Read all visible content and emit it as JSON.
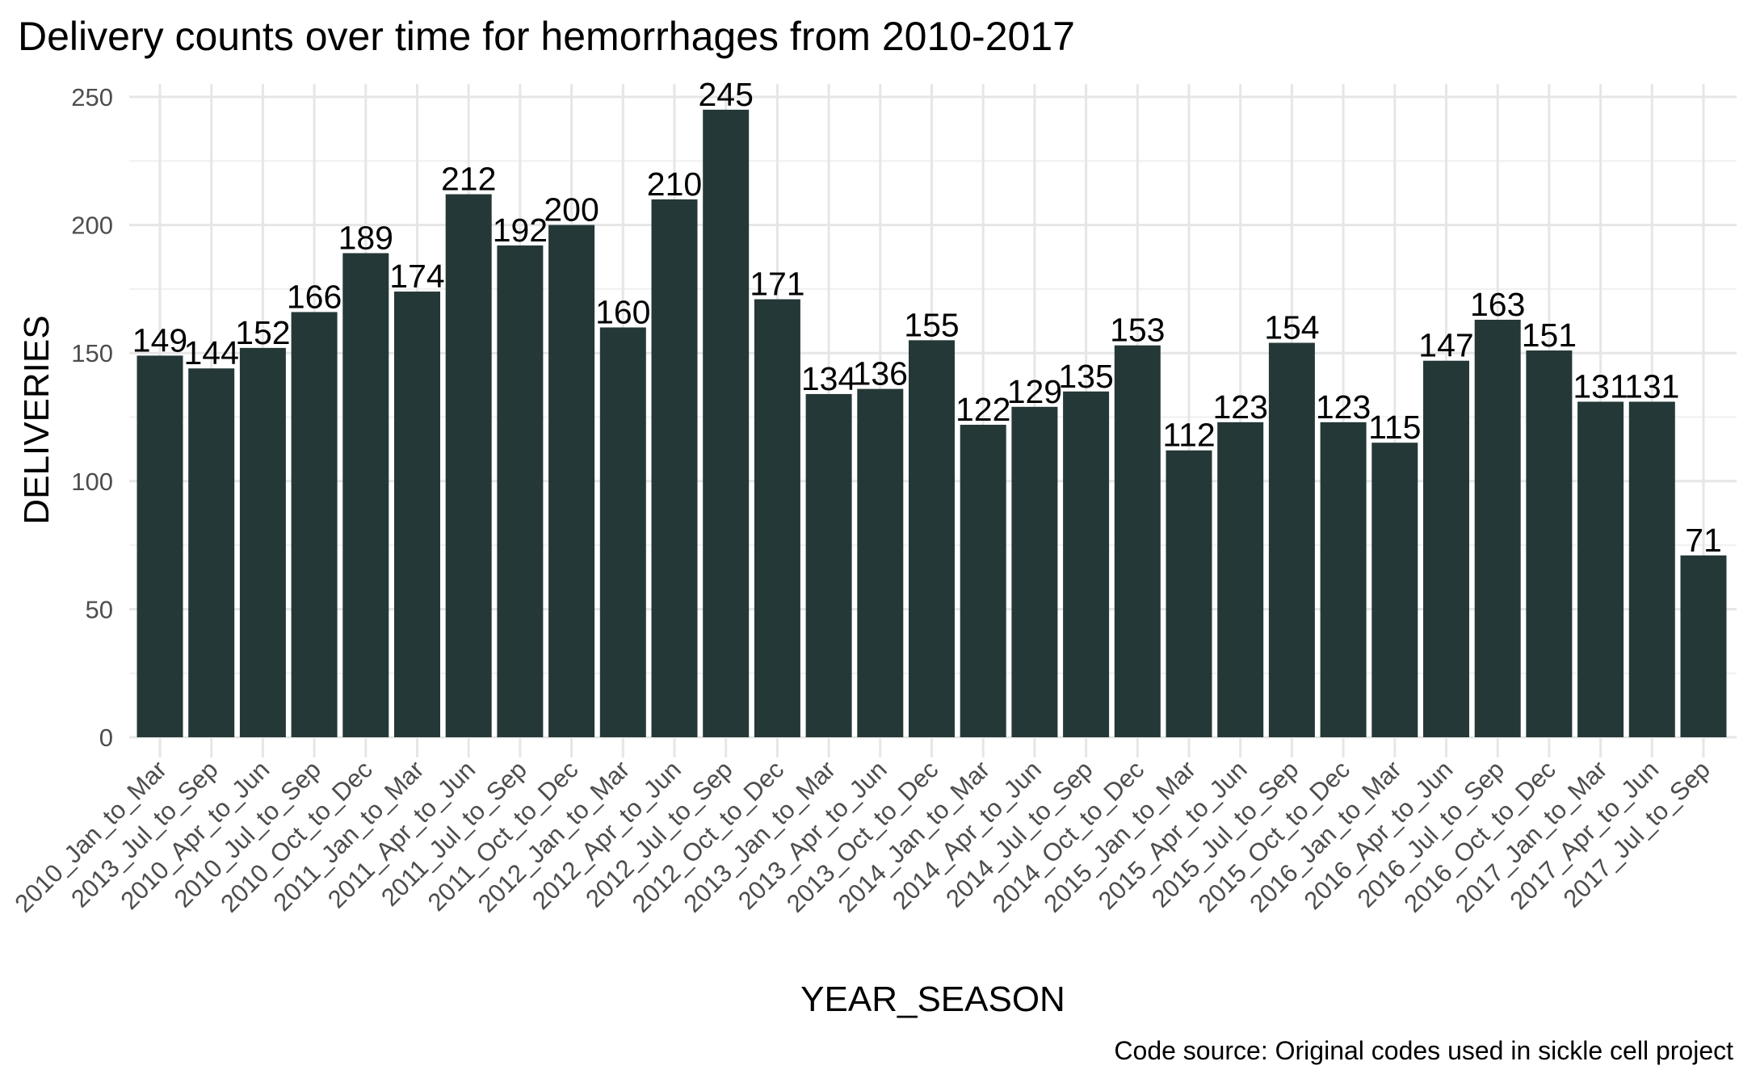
{
  "chart_data": {
    "type": "bar",
    "title": "Delivery counts over time for hemorrhages from 2010-2017",
    "xlabel": "YEAR_SEASON",
    "ylabel": "DELIVERIES",
    "caption": "Code source: Original codes used in sickle cell project",
    "ylim": [
      0,
      255
    ],
    "yticks": [
      0,
      50,
      100,
      150,
      200,
      250
    ],
    "grid": true,
    "bar_color": "#253838",
    "categories": [
      "2010_Jan_to_Mar",
      "2013_Jul_to_Sep",
      "2010_Apr_to_Jun",
      "2010_Jul_to_Sep",
      "2010_Oct_to_Dec",
      "2011_Jan_to_Mar",
      "2011_Apr_to_Jun",
      "2011_Jul_to_Sep",
      "2011_Oct_to_Dec",
      "2012_Jan_to_Mar",
      "2012_Apr_to_Jun",
      "2012_Jul_to_Sep",
      "2012_Oct_to_Dec",
      "2013_Jan_to_Mar",
      "2013_Apr_to_Jun",
      "2013_Oct_to_Dec",
      "2014_Jan_to_Mar",
      "2014_Apr_to_Jun",
      "2014_Jul_to_Sep",
      "2014_Oct_to_Dec",
      "2015_Jan_to_Mar",
      "2015_Apr_to_Jun",
      "2015_Jul_to_Sep",
      "2015_Oct_to_Dec",
      "2016_Jan_to_Mar",
      "2016_Apr_to_Jun",
      "2016_Jul_to_Sep",
      "2016_Oct_to_Dec",
      "2017_Jan_to_Mar",
      "2017_Apr_to_Jun",
      "2017_Jul_to_Sep"
    ],
    "values": [
      149,
      144,
      152,
      166,
      189,
      174,
      212,
      192,
      200,
      160,
      210,
      245,
      171,
      134,
      136,
      155,
      122,
      129,
      135,
      153,
      112,
      123,
      154,
      123,
      115,
      147,
      163,
      151,
      131,
      131,
      71
    ]
  }
}
